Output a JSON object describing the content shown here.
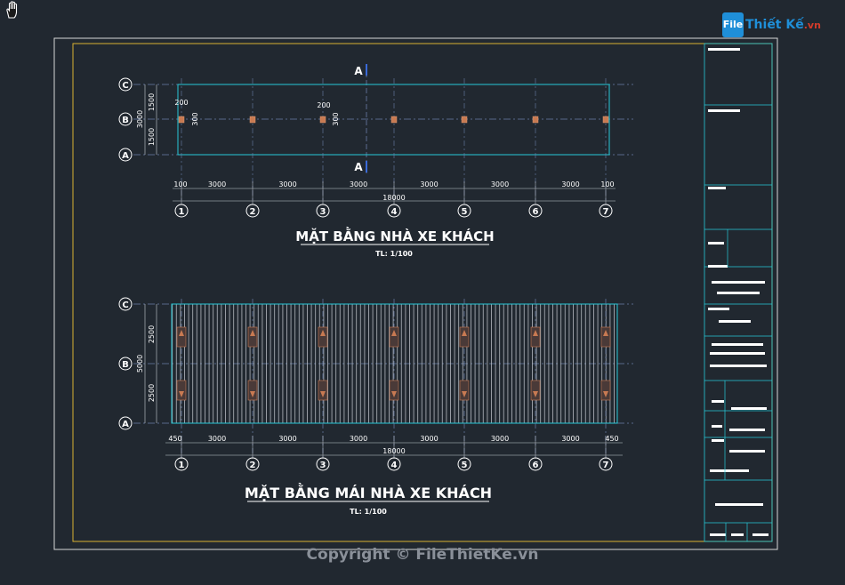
{
  "plan1": {
    "title": "MẶT BẰNG NHÀ XE KHÁCH",
    "scale": "TL: 1/100",
    "section_label": "A",
    "dim_vertical_1": "1500",
    "dim_vertical_2": "1500",
    "dim_vertical_total": "3000",
    "column_w": "200",
    "column_h": "300",
    "offset_left": "100",
    "offset_right": "100",
    "bay": "3000",
    "total": "18000"
  },
  "plan2": {
    "title": "MẶT BẰNG MÁI NHÀ XE KHÁCH",
    "scale": "TL: 1/100",
    "dim_vertical_1": "2500",
    "dim_vertical_2": "2500",
    "dim_vertical_total": "5000",
    "offset_left": "450",
    "offset_right": "450",
    "bay": "3000",
    "total": "18000"
  },
  "grid_rows": [
    "C",
    "B",
    "A"
  ],
  "grid_cols": [
    "1",
    "2",
    "3",
    "4",
    "5",
    "6",
    "7"
  ],
  "logo": {
    "box": "File",
    "name": "Thiết Kế",
    "tld": ".vn"
  },
  "copyright": "Copyright © FileThietKe.vn",
  "colors": {
    "background": "#212830",
    "sheet_border": "#d8d8d8",
    "inner_border": "#d9b232",
    "wall": "#27c8d8",
    "grid_line": "#6a7fa8",
    "column": "#c87a52",
    "text": "#ffffff"
  }
}
